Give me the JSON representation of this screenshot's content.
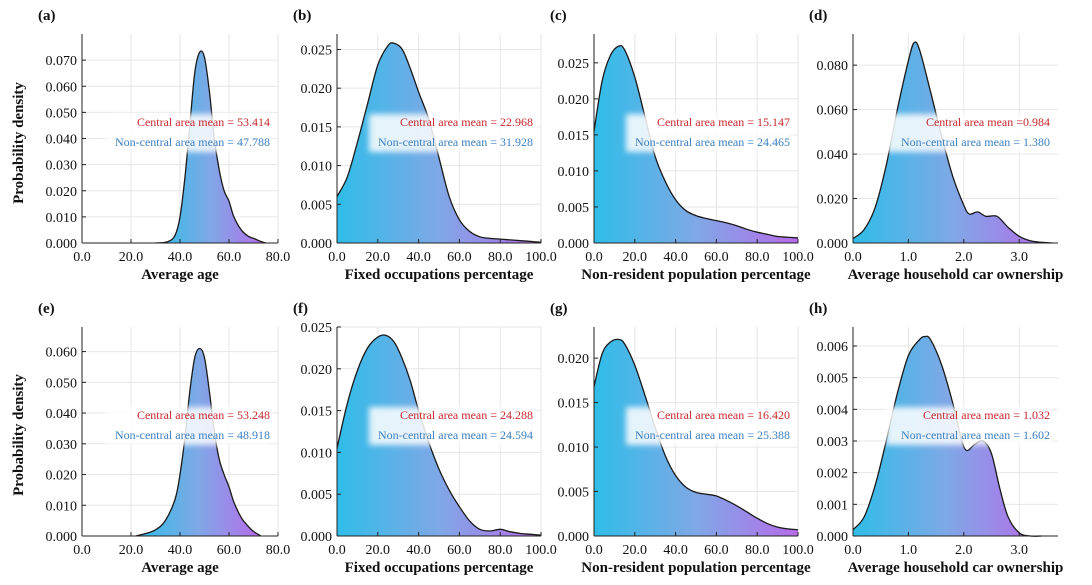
{
  "ylabel": "Probability density",
  "colors": {
    "central": "#c8282d",
    "noncentral": "#3a7fc1",
    "grad_left": "#2fbde8",
    "grad_mid": "#7fa8e6",
    "grad_right": "#b76bea",
    "grid": "#e6e6e6"
  },
  "chart_data": [
    {
      "panel": "(a)",
      "type": "area",
      "xlabel": "Average age",
      "xlim": [
        0,
        80
      ],
      "ylim": [
        0,
        0.08
      ],
      "xticks": [
        "0.0",
        "20.0",
        "40.0",
        "60.0",
        "80.0"
      ],
      "xtick_vals": [
        0,
        20,
        40,
        60,
        80
      ],
      "yticks": [
        "0.000",
        "0.010",
        "0.020",
        "0.030",
        "0.040",
        "0.050",
        "0.060",
        "0.070"
      ],
      "ytick_vals": [
        0,
        0.01,
        0.02,
        0.03,
        0.04,
        0.05,
        0.06,
        0.07
      ],
      "x": [
        30,
        35,
        38,
        40,
        42,
        44,
        46,
        48,
        50,
        52,
        54,
        56,
        58,
        60,
        62,
        65,
        68,
        70,
        73,
        75
      ],
      "y": [
        0,
        0.0005,
        0.003,
        0.01,
        0.025,
        0.045,
        0.065,
        0.073,
        0.071,
        0.058,
        0.04,
        0.028,
        0.02,
        0.016,
        0.01,
        0.005,
        0.0025,
        0.0018,
        0.0006,
        0
      ],
      "central_text": "Central area mean = 53.414",
      "noncentral_text": "Non-central area mean = 47.788"
    },
    {
      "panel": "(b)",
      "type": "area",
      "xlabel": "Fixed occupations percentage",
      "xlim": [
        0,
        100
      ],
      "ylim": [
        0,
        0.027
      ],
      "xticks": [
        "0.0",
        "20.0",
        "40.0",
        "60.0",
        "80.0",
        "100.0"
      ],
      "xtick_vals": [
        0,
        20,
        40,
        60,
        80,
        100
      ],
      "yticks": [
        "0.000",
        "0.005",
        "0.010",
        "0.015",
        "0.020",
        "0.025"
      ],
      "ytick_vals": [
        0,
        0.005,
        0.01,
        0.015,
        0.02,
        0.025
      ],
      "x": [
        0,
        5,
        10,
        15,
        20,
        25,
        28,
        32,
        36,
        40,
        45,
        50,
        55,
        60,
        65,
        70,
        75,
        80,
        85,
        90,
        95,
        100
      ],
      "y": [
        0.006,
        0.0085,
        0.013,
        0.018,
        0.023,
        0.0255,
        0.0258,
        0.025,
        0.0225,
        0.0195,
        0.016,
        0.011,
        0.006,
        0.003,
        0.0015,
        0.0008,
        0.0006,
        0.0005,
        0.0004,
        0.0003,
        0.0002,
        0.0001
      ],
      "central_text": "Central area mean = 22.968",
      "noncentral_text": "Non-central area mean = 31.928"
    },
    {
      "panel": "(c)",
      "type": "area",
      "xlabel": "Non-resident population percentage",
      "xlim": [
        0,
        100
      ],
      "ylim": [
        0,
        0.029
      ],
      "xticks": [
        "0.0",
        "20.0",
        "40.0",
        "60.0",
        "80.0",
        "100.0"
      ],
      "xtick_vals": [
        0,
        20,
        40,
        60,
        80,
        100
      ],
      "yticks": [
        "0.000",
        "0.005",
        "0.010",
        "0.015",
        "0.020",
        "0.025"
      ],
      "ytick_vals": [
        0,
        0.005,
        0.01,
        0.015,
        0.02,
        0.025
      ],
      "x": [
        0,
        4,
        8,
        12,
        15,
        20,
        25,
        30,
        35,
        40,
        45,
        50,
        55,
        60,
        65,
        70,
        75,
        80,
        85,
        90,
        95,
        100
      ],
      "y": [
        0.0155,
        0.0225,
        0.026,
        0.0273,
        0.0268,
        0.023,
        0.0175,
        0.012,
        0.0085,
        0.006,
        0.0045,
        0.0038,
        0.0034,
        0.0031,
        0.0028,
        0.0024,
        0.0019,
        0.0015,
        0.0012,
        0.0009,
        0.0008,
        0.0007
      ],
      "central_text": "Central area mean = 15.147",
      "noncentral_text": "Non-central area mean = 24.465"
    },
    {
      "panel": "(d)",
      "type": "area",
      "xlabel": "Average household car ownership",
      "xlim": [
        0,
        3.7
      ],
      "ylim": [
        0,
        0.094
      ],
      "xticks": [
        "0.0",
        "1.0",
        "2.0",
        "3.0"
      ],
      "xtick_vals": [
        0,
        1,
        2,
        3
      ],
      "yticks": [
        "0.000",
        "0.020",
        "0.040",
        "0.060",
        "0.080"
      ],
      "ytick_vals": [
        0,
        0.02,
        0.04,
        0.06,
        0.08
      ],
      "x": [
        0,
        0.2,
        0.4,
        0.6,
        0.8,
        1.0,
        1.1,
        1.2,
        1.4,
        1.6,
        1.8,
        2.0,
        2.1,
        2.25,
        2.4,
        2.6,
        2.8,
        3.0,
        3.2,
        3.4,
        3.6
      ],
      "y": [
        0.002,
        0.006,
        0.016,
        0.035,
        0.06,
        0.082,
        0.09,
        0.087,
        0.068,
        0.048,
        0.03,
        0.017,
        0.013,
        0.014,
        0.012,
        0.012,
        0.007,
        0.003,
        0.001,
        0.0003,
        0
      ],
      "central_text": "Central area mean =0.984",
      "noncentral_text": "Non-central area mean = 1.380"
    },
    {
      "panel": "(e)",
      "type": "area",
      "xlabel": "Average age",
      "xlim": [
        0,
        80
      ],
      "ylim": [
        0,
        0.068
      ],
      "xticks": [
        "0.0",
        "20.0",
        "40.0",
        "60.0",
        "80.0"
      ],
      "xtick_vals": [
        0,
        20,
        40,
        60,
        80
      ],
      "yticks": [
        "0.000",
        "0.010",
        "0.020",
        "0.030",
        "0.040",
        "0.050",
        "0.060"
      ],
      "ytick_vals": [
        0,
        0.01,
        0.02,
        0.03,
        0.04,
        0.05,
        0.06
      ],
      "x": [
        22,
        26,
        30,
        34,
        38,
        40,
        42,
        44,
        46,
        48,
        50,
        52,
        54,
        56,
        58,
        60,
        62,
        65,
        68,
        70,
        73
      ],
      "y": [
        0,
        0.0008,
        0.002,
        0.005,
        0.012,
        0.02,
        0.032,
        0.047,
        0.058,
        0.061,
        0.058,
        0.047,
        0.034,
        0.025,
        0.02,
        0.016,
        0.011,
        0.006,
        0.003,
        0.0015,
        0
      ],
      "central_text": "Central area mean = 53.248",
      "noncentral_text": "Non-central area mean = 48.918"
    },
    {
      "panel": "(f)",
      "type": "area",
      "xlabel": "Fixed occupations percentage",
      "xlim": [
        0,
        100
      ],
      "ylim": [
        0,
        0.025
      ],
      "xticks": [
        "0.0",
        "20.0",
        "40.0",
        "60.0",
        "80.0",
        "100.0"
      ],
      "xtick_vals": [
        0,
        20,
        40,
        60,
        80,
        100
      ],
      "yticks": [
        "0.000",
        "0.005",
        "0.010",
        "0.015",
        "0.020",
        "0.025"
      ],
      "ytick_vals": [
        0,
        0.005,
        0.01,
        0.015,
        0.02,
        0.025
      ],
      "x": [
        0,
        5,
        10,
        15,
        20,
        24,
        28,
        32,
        36,
        40,
        45,
        50,
        55,
        60,
        65,
        70,
        75,
        80,
        85,
        90,
        95,
        100
      ],
      "y": [
        0.0105,
        0.0158,
        0.0198,
        0.0225,
        0.0238,
        0.024,
        0.0232,
        0.0212,
        0.0185,
        0.015,
        0.0112,
        0.008,
        0.0055,
        0.0035,
        0.0018,
        0.0008,
        0.0006,
        0.0008,
        0.0005,
        0.0003,
        0.0002,
        0.0001
      ],
      "central_text": "Central area mean = 24.288",
      "noncentral_text": "Non-central area mean = 24.594"
    },
    {
      "panel": "(g)",
      "type": "area",
      "xlabel": "Non-resident population percentage",
      "xlim": [
        0,
        100
      ],
      "ylim": [
        0,
        0.0235
      ],
      "xticks": [
        "0.0",
        "20.0",
        "40.0",
        "60.0",
        "80.0",
        "100.0"
      ],
      "xtick_vals": [
        0,
        20,
        40,
        60,
        80,
        100
      ],
      "yticks": [
        "0.000",
        "0.005",
        "0.010",
        "0.015",
        "0.020"
      ],
      "ytick_vals": [
        0,
        0.005,
        0.01,
        0.015,
        0.02
      ],
      "x": [
        0,
        4,
        8,
        12,
        15,
        20,
        25,
        30,
        35,
        40,
        45,
        50,
        55,
        60,
        65,
        70,
        75,
        80,
        85,
        90,
        95,
        100
      ],
      "y": [
        0.0168,
        0.0205,
        0.0218,
        0.0221,
        0.0216,
        0.0192,
        0.0158,
        0.0122,
        0.009,
        0.0068,
        0.0055,
        0.0049,
        0.0047,
        0.0045,
        0.004,
        0.0034,
        0.0027,
        0.002,
        0.0014,
        0.001,
        0.0008,
        0.0007
      ],
      "central_text": "Central area mean = 16.420",
      "noncentral_text": "Non-central area mean = 25.388"
    },
    {
      "panel": "(h)",
      "type": "area",
      "xlabel": "Average household car ownership",
      "xlim": [
        0,
        3.7
      ],
      "ylim": [
        0,
        0.0066
      ],
      "xticks": [
        "0.0",
        "1.0",
        "2.0",
        "3.0"
      ],
      "xtick_vals": [
        0,
        1,
        2,
        3
      ],
      "yticks": [
        "0.000",
        "0.001",
        "0.002",
        "0.003",
        "0.004",
        "0.005",
        "0.006"
      ],
      "ytick_vals": [
        0,
        0.001,
        0.002,
        0.003,
        0.004,
        0.005,
        0.006
      ],
      "x": [
        0,
        0.2,
        0.4,
        0.6,
        0.8,
        1.0,
        1.2,
        1.3,
        1.4,
        1.6,
        1.8,
        1.95,
        2.05,
        2.2,
        2.35,
        2.5,
        2.65,
        2.8,
        3.0,
        3.2,
        3.4
      ],
      "y": [
        0.0002,
        0.0006,
        0.0016,
        0.003,
        0.0045,
        0.0057,
        0.0062,
        0.0063,
        0.0062,
        0.0054,
        0.0042,
        0.0031,
        0.0027,
        0.0029,
        0.003,
        0.0026,
        0.0015,
        0.0006,
        0.0001,
        0,
        0
      ],
      "central_text": "Central area mean = 1.032",
      "noncentral_text": "Non-central area mean = 1.602"
    }
  ]
}
